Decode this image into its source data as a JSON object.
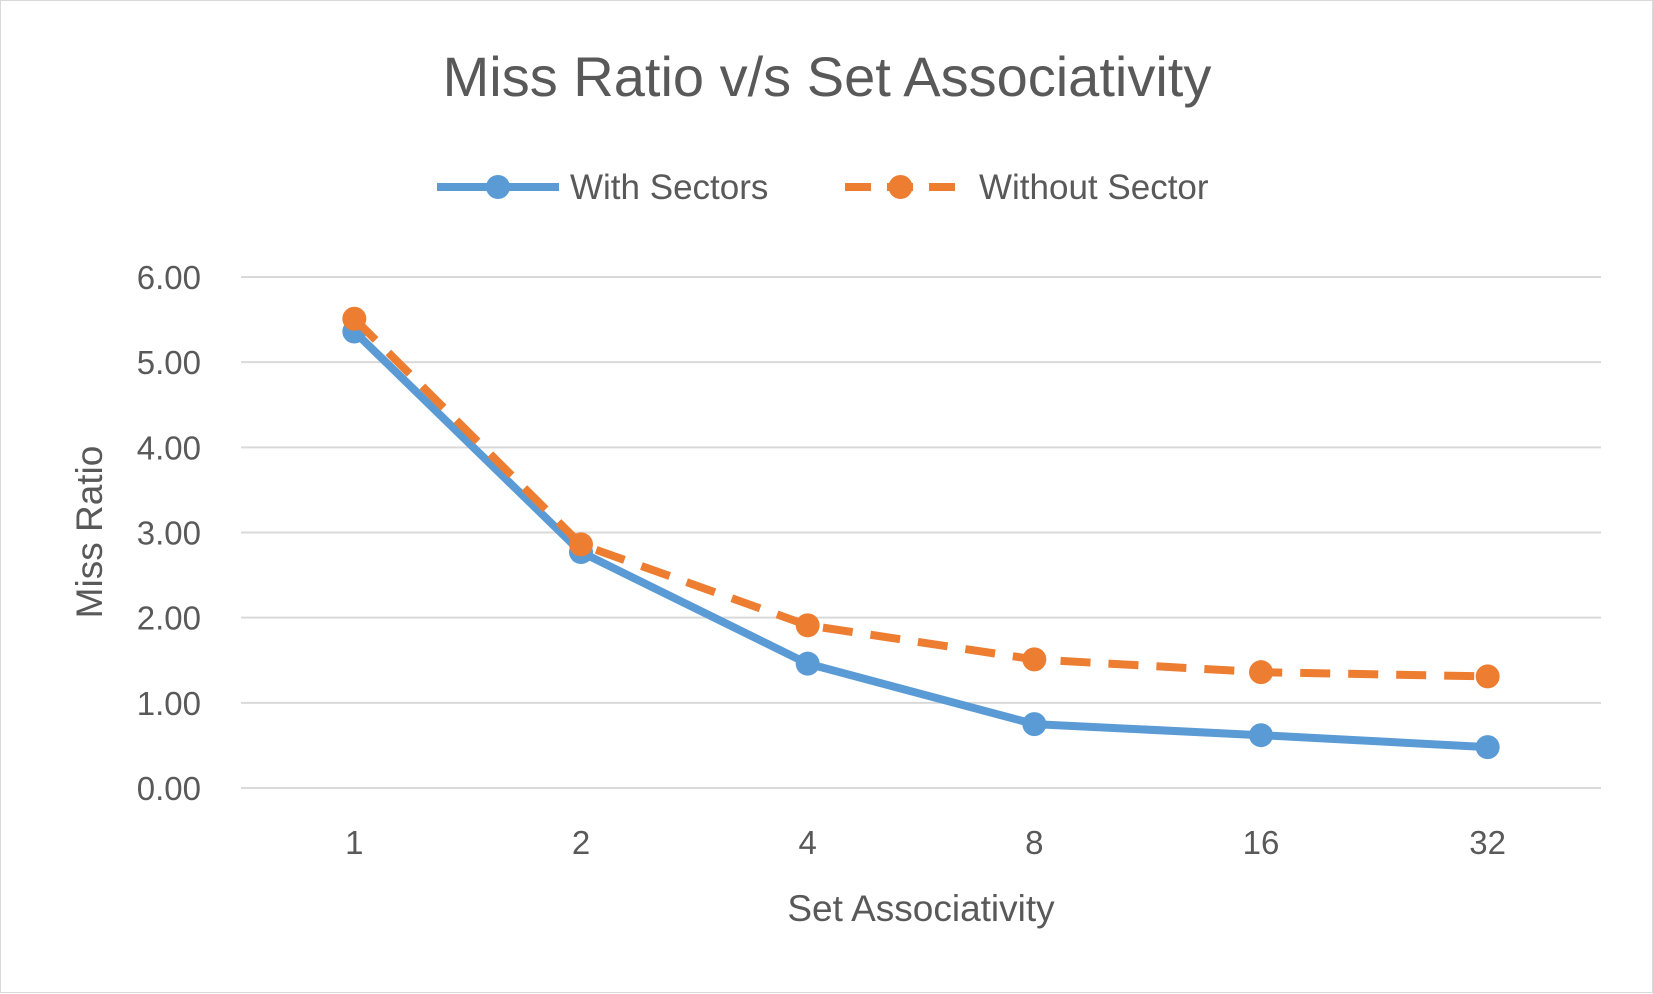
{
  "chart_data": {
    "type": "line",
    "title": "Miss Ratio v/s Set Associativity",
    "xlabel": "Set Associativity",
    "ylabel": "Miss Ratio",
    "categories": [
      "1",
      "2",
      "4",
      "8",
      "16",
      "32"
    ],
    "ylim": [
      0,
      6
    ],
    "yticks": [
      "0.00",
      "1.00",
      "2.00",
      "3.00",
      "4.00",
      "5.00",
      "6.00"
    ],
    "grid": true,
    "legend_position": "top",
    "series": [
      {
        "name": "With Sectors",
        "values": [
          5.36,
          2.77,
          1.46,
          0.75,
          0.62,
          0.48
        ],
        "color": "#5b9bd5",
        "line_style": "solid",
        "marker": "circle"
      },
      {
        "name": "Without Sector",
        "values": [
          5.51,
          2.86,
          1.91,
          1.51,
          1.36,
          1.31
        ],
        "color": "#ed7d31",
        "line_style": "dashed",
        "marker": "circle"
      }
    ]
  }
}
